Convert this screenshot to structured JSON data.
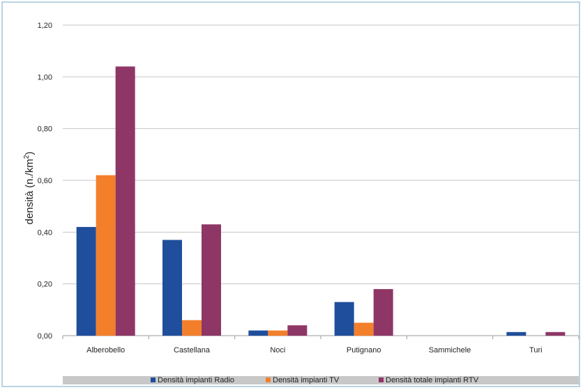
{
  "chart_data": {
    "type": "bar",
    "categories": [
      "Alberobello",
      "Castellana",
      "Noci",
      "Putignano",
      "Sammichele",
      "Turi"
    ],
    "series": [
      {
        "name": "Densità impianti Radio",
        "color": "#1f4e9c",
        "values": [
          0.42,
          0.37,
          0.02,
          0.13,
          0.0,
          0.014
        ]
      },
      {
        "name": "Densità impianti TV",
        "color": "#f47f2a",
        "values": [
          0.62,
          0.06,
          0.02,
          0.05,
          0.0,
          0.0
        ]
      },
      {
        "name": "Densità totale impianti RTV",
        "color": "#8e3766",
        "values": [
          1.04,
          0.43,
          0.04,
          0.18,
          0.0,
          0.014
        ]
      }
    ],
    "ylabel": "densità (n./km²)",
    "ylabel_main": "densità (n./km",
    "ylabel_sup": "2",
    "ylabel_close": ")",
    "ylim": [
      0,
      1.2
    ],
    "yticks": [
      "0,00",
      "0,20",
      "0,40",
      "0,60",
      "0,80",
      "1,00",
      "1,20"
    ],
    "grid": true,
    "legend_position": "bottom"
  }
}
